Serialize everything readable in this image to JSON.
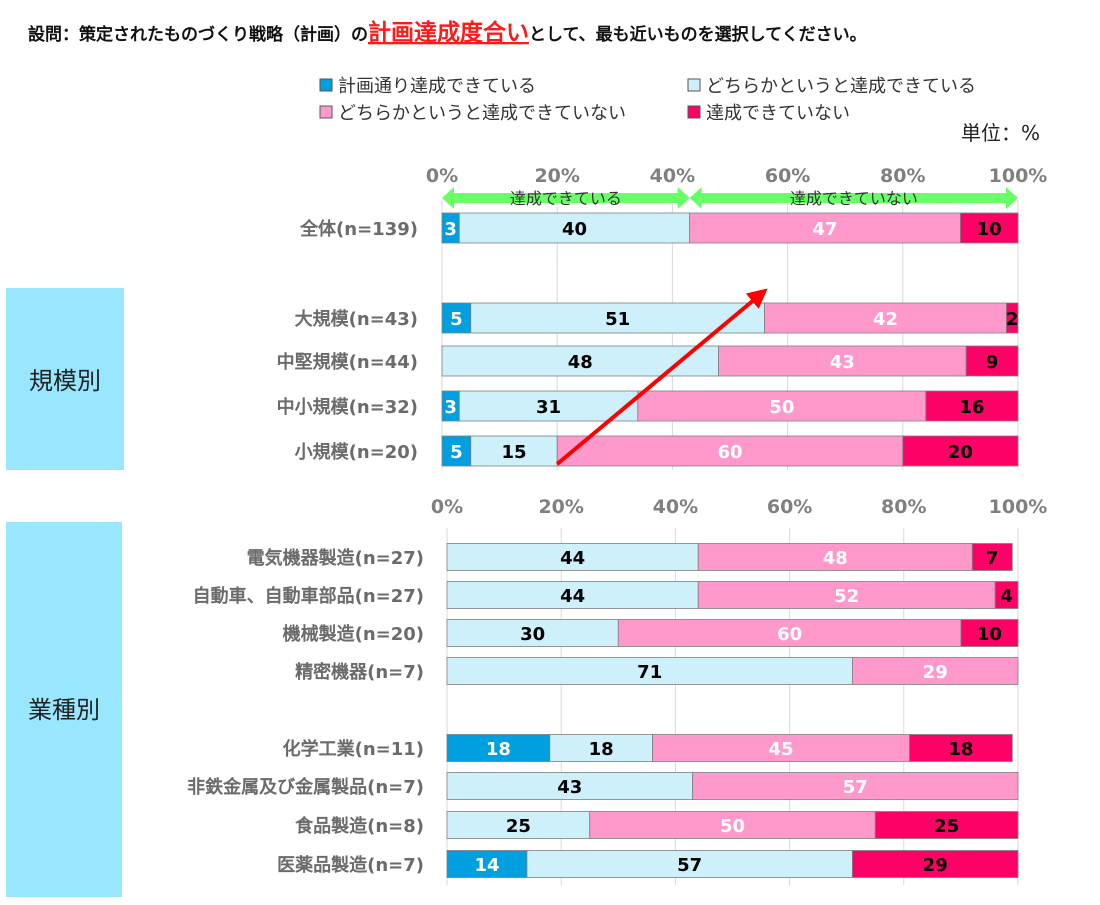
{
  "question": {
    "prefix": "設問：策定されたものづくり戦略（計画）の",
    "highlight": "計画達成度合い",
    "suffix": "として、最も近いものを選択してください。"
  },
  "unit_label": "単位：%",
  "colors": {
    "s1": "#00a0e0",
    "s2": "#cdf0fb",
    "s3": "#ff99cc",
    "s4": "#ff0066",
    "group_box": "#99e6ff",
    "grid": "#d9d9d9",
    "green_arrow": "#66ff66",
    "red_arrow": "#ff0000",
    "text_dark": "#000000",
    "text_light": "#ffffff"
  },
  "chart_data": {
    "type": "bar",
    "orientation": "horizontal",
    "stacked": true,
    "xlim": [
      0,
      100
    ],
    "xticks": [
      "0%",
      "20%",
      "40%",
      "60%",
      "80%",
      "100%"
    ],
    "grid": true,
    "legend_position": "top",
    "series": [
      {
        "name": "計画通り達成できている",
        "color": "#00a0e0"
      },
      {
        "name": "どちらかというと達成できている",
        "color": "#cdf0fb"
      },
      {
        "name": "どちらかというと達成できていない",
        "color": "#ff99cc"
      },
      {
        "name": "達成できていない",
        "color": "#ff0066"
      }
    ],
    "panels": [
      {
        "categories": [
          "全体(n=139)",
          "大規模(n=43)",
          "中堅規模(n=44)",
          "中小規模(n=32)",
          "小規模(n=20)"
        ],
        "values": [
          [
            3,
            40,
            47,
            10
          ],
          [
            5,
            51,
            42,
            2
          ],
          [
            0,
            48,
            43,
            9
          ],
          [
            3,
            31,
            50,
            16
          ],
          [
            5,
            15,
            60,
            20
          ]
        ],
        "group_label": "規模別",
        "range_labels": [
          {
            "text": "達成できている",
            "from": 0,
            "to": 43
          },
          {
            "text": "達成できていない",
            "from": 43,
            "to": 100
          }
        ]
      },
      {
        "categories": [
          "電気機器製造(n=27)",
          "自動車、自動車部品(n=27)",
          "機械製造(n=20)",
          "精密機器(n=7)",
          "化学工業(n=11)",
          "非鉄金属及び金属製品(n=7)",
          "食品製造(n=8)",
          "医薬品製造(n=7)"
        ],
        "values": [
          [
            0,
            44,
            48,
            7
          ],
          [
            0,
            44,
            52,
            4
          ],
          [
            0,
            30,
            60,
            10
          ],
          [
            0,
            71,
            29,
            0
          ],
          [
            18,
            18,
            45,
            18
          ],
          [
            0,
            43,
            57,
            0
          ],
          [
            0,
            25,
            50,
            25
          ],
          [
            14,
            57,
            0,
            29
          ]
        ],
        "group_label": "業種別"
      }
    ]
  }
}
